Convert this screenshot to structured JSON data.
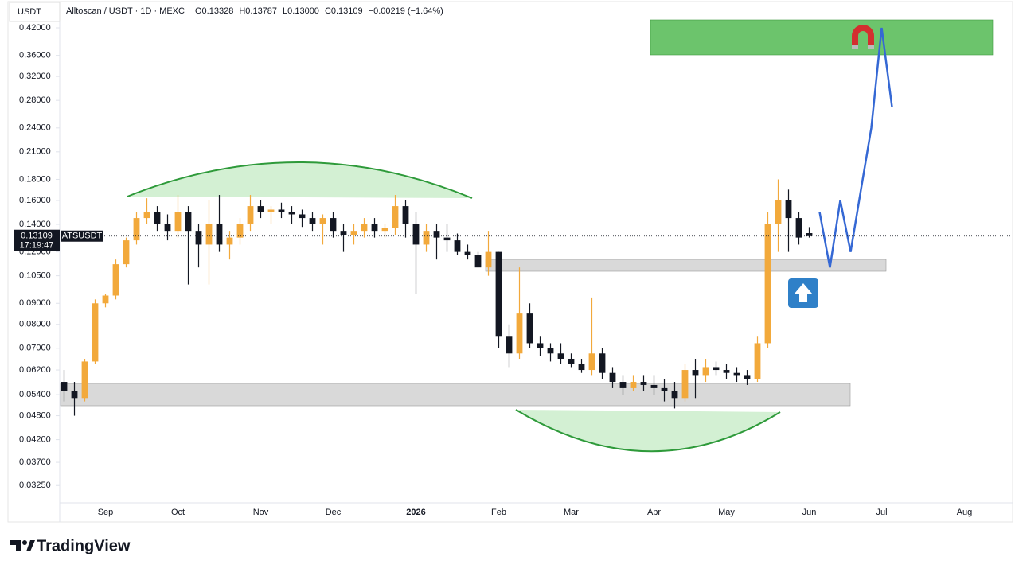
{
  "chart_data": {
    "type": "candlestick",
    "title": "Alltoscan / USDT · 1D · MEXC",
    "ohlc_labels": [
      "O0.13328",
      "H0.13787",
      "L0.13000",
      "C0.13109"
    ],
    "change_label": "−0.00219 (−1.64%)",
    "axis_unit": "USDT",
    "last_price_label": "0.13109",
    "countdown": "17:19:47",
    "ticker": "ATSUSDT",
    "brand": "TradingView",
    "log_scale": true,
    "up_color": "#f2a93b",
    "down_color": "#131722",
    "ylim": [
      0.0295,
      0.48
    ],
    "yticks": [
      {
        "value": 0.42,
        "label": "0.42000"
      },
      {
        "value": 0.36,
        "label": "0.36000"
      },
      {
        "value": 0.32,
        "label": "0.32000"
      },
      {
        "value": 0.28,
        "label": "0.28000"
      },
      {
        "value": 0.24,
        "label": "0.24000"
      },
      {
        "value": 0.21,
        "label": "0.21000"
      },
      {
        "value": 0.18,
        "label": "0.18000"
      },
      {
        "value": 0.16,
        "label": "0.16000"
      },
      {
        "value": 0.14,
        "label": "0.14000"
      },
      {
        "value": 0.12,
        "label": "0.12000"
      },
      {
        "value": 0.105,
        "label": "0.10500"
      },
      {
        "value": 0.09,
        "label": "0.09000"
      },
      {
        "value": 0.08,
        "label": "0.08000"
      },
      {
        "value": 0.07,
        "label": "0.07000"
      },
      {
        "value": 0.062,
        "label": "0.06200"
      },
      {
        "value": 0.054,
        "label": "0.05400"
      },
      {
        "value": 0.048,
        "label": "0.04800"
      },
      {
        "value": 0.042,
        "label": "0.04200"
      },
      {
        "value": 0.037,
        "label": "0.03700"
      },
      {
        "value": 0.0325,
        "label": "0.03250"
      }
    ],
    "categories": [
      null,
      null,
      null,
      null,
      "Sep",
      null,
      null,
      null,
      null,
      null,
      null,
      "Oct",
      null,
      null,
      null,
      null,
      null,
      null,
      null,
      "Nov",
      null,
      null,
      null,
      null,
      null,
      null,
      "Dec",
      null,
      null,
      null,
      null,
      null,
      null,
      null,
      "2026",
      null,
      null,
      null,
      null,
      null,
      null,
      null,
      "Feb",
      null,
      null,
      null,
      null,
      null,
      null,
      "Mar",
      null,
      null,
      null,
      null,
      null,
      null,
      null,
      "Apr",
      null,
      null,
      null,
      null,
      null,
      null,
      "May",
      null,
      null,
      null,
      null,
      null,
      null,
      null,
      "Jun",
      null,
      null,
      null,
      null,
      null,
      null,
      "Jul",
      null,
      null,
      null,
      null,
      null,
      null,
      null,
      "Aug",
      null,
      null,
      null,
      null
    ],
    "open": [
      0.058,
      0.055,
      0.053,
      0.065,
      0.09,
      0.094,
      0.112,
      0.128,
      0.145,
      0.15,
      0.14,
      0.135,
      0.15,
      0.135,
      0.125,
      0.14,
      0.125,
      0.13,
      0.14,
      0.155,
      0.15,
      0.152,
      0.15,
      0.148,
      0.145,
      0.14,
      0.145,
      0.135,
      0.132,
      0.135,
      0.14,
      0.135,
      0.137,
      0.155,
      0.14,
      0.125,
      0.135,
      0.13,
      0.128,
      0.12,
      0.118,
      0.11,
      0.12,
      0.075,
      0.068,
      0.085,
      0.072,
      0.07,
      0.068,
      0.066,
      0.064,
      0.062,
      0.068,
      0.061,
      0.058,
      0.056,
      0.058,
      0.057,
      0.056,
      0.055,
      0.053,
      0.062,
      0.06,
      0.063,
      0.062,
      0.061,
      0.06,
      0.059,
      0.072,
      0.14,
      0.16,
      0.145,
      0.13328,
      null,
      null,
      null,
      null,
      null,
      null,
      null,
      null,
      null,
      null,
      null,
      null,
      null,
      null,
      null,
      null,
      null,
      null,
      null
    ],
    "high": [
      0.062,
      0.058,
      0.066,
      0.092,
      0.095,
      0.115,
      0.13,
      0.15,
      0.162,
      0.155,
      0.148,
      0.165,
      0.155,
      0.14,
      0.16,
      0.165,
      0.135,
      0.145,
      0.165,
      0.16,
      0.155,
      0.158,
      0.155,
      0.152,
      0.15,
      0.148,
      0.15,
      0.14,
      0.14,
      0.145,
      0.145,
      0.14,
      0.165,
      0.16,
      0.15,
      0.14,
      0.14,
      0.14,
      0.133,
      0.125,
      0.12,
      0.135,
      0.12,
      0.08,
      0.11,
      0.09,
      0.075,
      0.072,
      0.072,
      0.068,
      0.066,
      0.093,
      0.07,
      0.063,
      0.06,
      0.06,
      0.06,
      0.06,
      0.059,
      0.058,
      0.064,
      0.066,
      0.066,
      0.065,
      0.064,
      0.063,
      0.062,
      0.075,
      0.15,
      0.18,
      0.17,
      0.15,
      0.13787,
      null,
      null,
      null,
      null,
      null,
      null,
      null,
      null,
      null,
      null,
      null,
      null,
      null,
      null,
      null,
      null,
      null,
      null,
      null
    ],
    "low": [
      0.052,
      0.048,
      0.052,
      0.064,
      0.088,
      0.092,
      0.11,
      0.125,
      0.14,
      0.135,
      0.128,
      0.13,
      0.1,
      0.11,
      0.1,
      0.12,
      0.115,
      0.125,
      0.135,
      0.145,
      0.14,
      0.145,
      0.14,
      0.138,
      0.135,
      0.125,
      0.13,
      0.12,
      0.125,
      0.13,
      0.13,
      0.13,
      0.132,
      0.13,
      0.095,
      0.12,
      0.115,
      0.12,
      0.118,
      0.115,
      0.11,
      0.105,
      0.07,
      0.063,
      0.066,
      0.07,
      0.067,
      0.065,
      0.064,
      0.063,
      0.061,
      0.06,
      0.059,
      0.056,
      0.054,
      0.055,
      0.055,
      0.054,
      0.052,
      0.05,
      0.052,
      0.053,
      0.058,
      0.06,
      0.059,
      0.058,
      0.057,
      0.058,
      0.07,
      0.12,
      0.12,
      0.125,
      0.13,
      null,
      null,
      null,
      null,
      null,
      null,
      null,
      null,
      null,
      null,
      null,
      null,
      null,
      null,
      null,
      null,
      null,
      null,
      null
    ],
    "close": [
      0.055,
      0.053,
      0.065,
      0.09,
      0.094,
      0.112,
      0.128,
      0.145,
      0.15,
      0.14,
      0.135,
      0.15,
      0.135,
      0.125,
      0.14,
      0.125,
      0.13,
      0.14,
      0.155,
      0.15,
      0.152,
      0.15,
      0.148,
      0.145,
      0.14,
      0.145,
      0.135,
      0.132,
      0.135,
      0.14,
      0.135,
      0.137,
      0.155,
      0.14,
      0.125,
      0.135,
      0.13,
      0.128,
      0.12,
      0.118,
      0.11,
      0.12,
      0.075,
      0.068,
      0.085,
      0.072,
      0.07,
      0.068,
      0.066,
      0.064,
      0.062,
      0.068,
      0.061,
      0.058,
      0.056,
      0.058,
      0.057,
      0.056,
      0.055,
      0.053,
      0.062,
      0.06,
      0.063,
      0.062,
      0.061,
      0.06,
      0.059,
      0.072,
      0.14,
      0.16,
      0.145,
      0.13,
      0.13109,
      null,
      null,
      null,
      null,
      null,
      null,
      null,
      null,
      null,
      null,
      null,
      null,
      null,
      null,
      null,
      null,
      null,
      null,
      null
    ],
    "projection": {
      "color": "#3568d4",
      "values": [
        null,
        null,
        null,
        null,
        null,
        null,
        null,
        null,
        null,
        null,
        null,
        null,
        null,
        null,
        null,
        null,
        null,
        null,
        null,
        null,
        null,
        null,
        null,
        null,
        null,
        null,
        null,
        null,
        null,
        null,
        null,
        null,
        null,
        null,
        null,
        null,
        null,
        null,
        null,
        null,
        null,
        null,
        null,
        null,
        null,
        null,
        null,
        null,
        null,
        null,
        null,
        null,
        null,
        null,
        null,
        null,
        null,
        null,
        null,
        null,
        null,
        null,
        null,
        null,
        null,
        null,
        null,
        null,
        null,
        null,
        null,
        null,
        null,
        0.15,
        0.11,
        0.16,
        0.12,
        0.17,
        0.24,
        0.42,
        0.27,
        null,
        null,
        null,
        null,
        null,
        null,
        null,
        null,
        null,
        null,
        null
      ]
    }
  }
}
